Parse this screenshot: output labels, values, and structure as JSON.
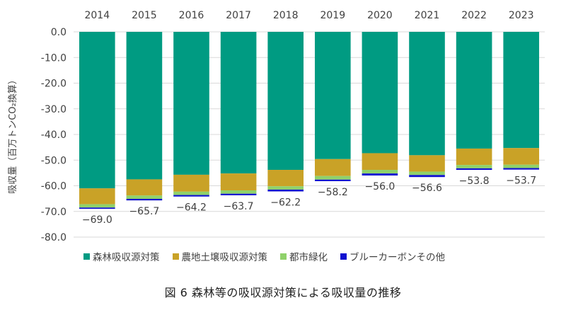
{
  "chart_data": {
    "type": "bar",
    "stacked": true,
    "categories": [
      "2014",
      "2015",
      "2016",
      "2017",
      "2018",
      "2019",
      "2020",
      "2021",
      "2022",
      "2023"
    ],
    "series": [
      {
        "name": "森林吸収源対策",
        "color": "#009B82",
        "values": [
          -61.0,
          -57.5,
          -55.7,
          -55.2,
          -53.8,
          -49.6,
          -47.3,
          -48.1,
          -45.5,
          -45.3
        ]
      },
      {
        "name": "農地土壌吸収源対策",
        "color": "#C9A227",
        "values": [
          -6.2,
          -6.3,
          -6.6,
          -6.6,
          -6.4,
          -6.6,
          -6.5,
          -6.4,
          -6.4,
          -6.5
        ]
      },
      {
        "name": "都市緑化",
        "color": "#8FD16A",
        "values": [
          -1.3,
          -1.3,
          -1.3,
          -1.3,
          -1.3,
          -1.4,
          -1.4,
          -1.3,
          -1.3,
          -1.3
        ]
      },
      {
        "name": "ブルーカーボンその他",
        "color": "#1010D0",
        "values": [
          -0.5,
          -0.6,
          -0.6,
          -0.6,
          -0.7,
          -0.6,
          -0.8,
          -0.8,
          -0.6,
          -0.6
        ]
      }
    ],
    "totals": [
      -69.0,
      -65.7,
      -64.2,
      -63.7,
      -62.2,
      -58.2,
      -56.0,
      -56.6,
      -53.8,
      -53.7
    ],
    "total_labels": [
      "−69.0",
      "−65.7",
      "−64.2",
      "−63.7",
      "−62.2",
      "−58.2",
      "−56.0",
      "−56.6",
      "−53.8",
      "−53.7"
    ],
    "ylim": [
      -80,
      0
    ],
    "yticks": [
      0,
      -10,
      -20,
      -30,
      -40,
      -50,
      -60,
      -70,
      -80
    ],
    "ytick_labels": [
      "0.0",
      "-10.0",
      "-20.0",
      "-30.0",
      "-40.0",
      "-50.0",
      "-60.0",
      "-70.0",
      "-80.0"
    ],
    "ylabel": "吸収量（百万トンCO₂換算）",
    "xlabel": "",
    "grid": true,
    "legend_position": "bottom",
    "title": "図 6  森林等の吸収源対策による吸収量の推移"
  }
}
